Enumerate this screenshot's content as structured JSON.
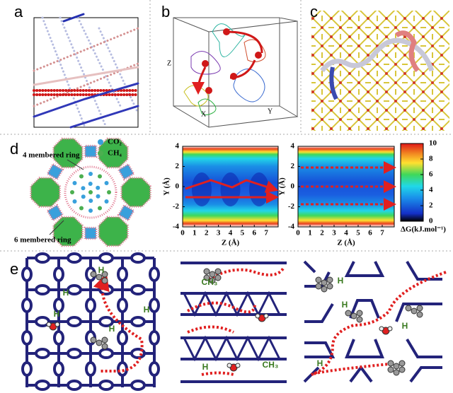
{
  "panel_labels": [
    "a",
    "b",
    "c",
    "d",
    "e"
  ],
  "panel_b": {
    "axis_labels": [
      "Z",
      "X",
      "Y"
    ]
  },
  "panel_d": {
    "ring_labels": [
      "4 membered ring",
      "6 membered ring"
    ],
    "legend": [
      {
        "name": "CO₂",
        "color": "#39a0dc"
      },
      {
        "name": "CH₄",
        "color": "#4caf50"
      }
    ],
    "plots": [
      {
        "xlabel": "Z (Å)",
        "ylabel": "Y (Å)",
        "xlim": [
          0,
          8
        ],
        "xticks": [
          0,
          1,
          2,
          3,
          4,
          5,
          6,
          7
        ],
        "ylim": [
          -4,
          4
        ],
        "yticks": [
          -4,
          -2,
          0,
          2,
          4
        ]
      },
      {
        "xlabel": "Z (Å)",
        "ylabel": "Y (Å)",
        "xlim": [
          0,
          8
        ],
        "xticks": [
          0,
          1,
          2,
          3,
          4,
          5,
          6,
          7
        ],
        "ylim": [
          -4,
          4
        ],
        "yticks": [
          -4,
          -2,
          0,
          2,
          4
        ]
      }
    ],
    "colorbar": {
      "label": "ΔG(kJ.mol⁻¹)",
      "lim": [
        0,
        10
      ],
      "ticks": [
        0,
        2,
        4,
        6,
        8,
        10
      ]
    }
  },
  "panel_e": {
    "labels": [
      "H",
      "H",
      "H",
      "H",
      "H",
      "CH₃",
      "H",
      "CH₃",
      "H",
      "H",
      "H",
      "H"
    ]
  }
}
